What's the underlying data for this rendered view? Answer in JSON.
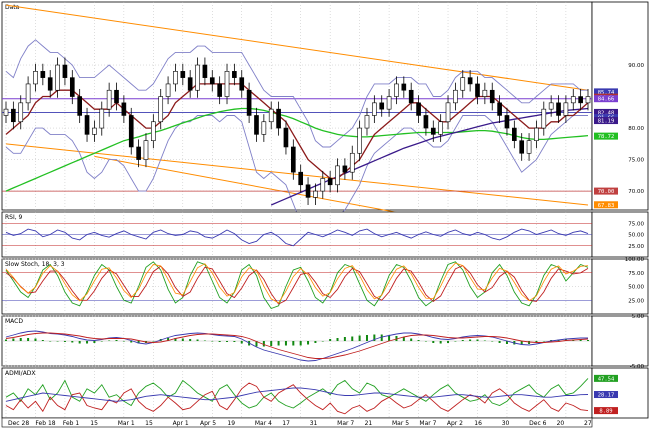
{
  "chart_data": {
    "type": "line",
    "x_labels": [
      "Dec 28",
      "Feb 18",
      "Feb 1",
      "15",
      "Mar 1",
      "15",
      "Apr 1",
      "Apr 5",
      "19",
      "Mar 4",
      "17",
      "31",
      "Mar 7",
      "21",
      "Mar 5",
      "Mar 7",
      "Apr 2",
      "16",
      "30",
      "Dec 6",
      "20",
      "27"
    ],
    "colors": {
      "background": "#ffffff",
      "grid": "#bdbdbd",
      "candle": "#000000",
      "bollinger": "#8080c8",
      "ma_short": "#8b1a1a",
      "ma_long": "#22c022",
      "ma_200": "#3a1a8a",
      "channel": "#ff8c00",
      "purple_line": "#7a3fd0",
      "red_line": "#c04040"
    },
    "price_pane": {
      "title": "Data",
      "y_range": [
        67,
        100
      ],
      "y_ticks": [
        90.0,
        80.0,
        75.0,
        70.0
      ],
      "right_tags": [
        {
          "value": 85.74,
          "label": "85.74",
          "color": "#3a3ab0"
        },
        {
          "value": 84.9,
          "label": "84.9",
          "color": "#b03030"
        },
        {
          "value": 84.66,
          "label": "84.66",
          "color": "#7a3fd0"
        },
        {
          "value": 82.48,
          "label": "82.48",
          "color": "#3a1a8a"
        },
        {
          "value": 81.66,
          "label": "81.66",
          "color": "#3a3ab0"
        },
        {
          "value": 81.19,
          "label": "81.19",
          "color": "#3a1a8a"
        },
        {
          "value": 78.72,
          "label": "78.72",
          "color": "#22c022"
        },
        {
          "value": 70.0,
          "label": "70.00",
          "color": "#c04040"
        },
        {
          "value": 67.83,
          "label": "67.83",
          "color": "#ff8c00"
        }
      ],
      "candles_close": [
        83,
        81,
        84,
        87,
        89,
        88,
        86,
        90,
        88,
        85,
        82,
        79,
        80,
        83,
        86,
        84,
        82,
        77,
        75,
        78,
        81,
        85,
        87,
        89,
        88,
        86,
        90,
        88,
        87,
        85,
        89,
        88,
        86,
        82,
        79,
        81,
        83,
        80,
        77,
        73,
        71,
        69,
        70,
        72,
        71,
        74,
        73,
        76,
        80,
        82,
        84,
        83,
        85,
        87,
        86,
        84,
        82,
        80,
        79,
        81,
        84,
        86,
        88,
        87,
        85,
        86,
        84,
        82,
        80,
        78,
        76,
        78,
        80,
        83,
        84,
        82,
        84,
        85,
        84,
        85
      ],
      "bollinger_upper": [
        89,
        88,
        91,
        93,
        94,
        93,
        92,
        92,
        91,
        90,
        88,
        88,
        88,
        89,
        90,
        89,
        88,
        87,
        86,
        86,
        87,
        89,
        91,
        92,
        92,
        92,
        93,
        93,
        92,
        92,
        92,
        92,
        92,
        90,
        88,
        86,
        85,
        85,
        85,
        85,
        83,
        81,
        78,
        77,
        77,
        78,
        79,
        80,
        82,
        85,
        87,
        87,
        87,
        88,
        88,
        88,
        87,
        87,
        85,
        85,
        86,
        88,
        89,
        89,
        89,
        88,
        88,
        87,
        86,
        85,
        84,
        84,
        85,
        86,
        87,
        87,
        87,
        87,
        86,
        86
      ],
      "bollinger_lower": [
        77,
        76,
        76,
        78,
        80,
        80,
        79,
        79,
        79,
        78,
        76,
        73,
        72,
        73,
        75,
        75,
        74,
        72,
        70,
        70,
        72,
        75,
        78,
        80,
        81,
        81,
        82,
        82,
        82,
        81,
        82,
        82,
        81,
        77,
        73,
        72,
        73,
        72,
        71,
        68,
        65,
        63,
        63,
        65,
        65,
        66,
        67,
        69,
        71,
        74,
        76,
        77,
        78,
        79,
        80,
        80,
        79,
        78,
        77,
        77,
        78,
        80,
        82,
        82,
        82,
        82,
        81,
        79,
        77,
        75,
        73,
        74,
        75,
        77,
        79,
        80,
        81,
        82,
        82,
        82
      ],
      "ma_short": [
        79,
        80,
        81,
        82,
        84,
        85,
        85,
        86,
        86,
        86,
        85,
        84,
        83,
        83,
        83,
        84,
        83,
        82,
        81,
        80,
        80,
        81,
        82,
        84,
        85,
        86,
        87,
        87,
        87,
        87,
        87,
        87,
        87,
        86,
        85,
        84,
        83,
        82,
        81,
        79,
        77,
        75,
        74,
        73,
        72,
        72,
        73,
        74,
        75,
        77,
        79,
        80,
        81,
        82,
        83,
        84,
        84,
        83,
        82,
        81,
        81,
        82,
        83,
        84,
        85,
        85,
        85,
        84,
        83,
        82,
        81,
        80,
        80,
        80,
        81,
        81,
        82,
        82,
        83,
        84
      ],
      "ma_long": [
        70,
        70.5,
        71,
        71.5,
        72,
        72.5,
        73,
        73.5,
        74,
        74.5,
        75,
        75.5,
        76,
        76.5,
        77,
        77.5,
        78,
        78.3,
        78.6,
        79,
        79.3,
        79.6,
        80,
        80.4,
        80.8,
        81.2,
        81.6,
        82,
        82.3,
        82.6,
        82.8,
        83,
        83.1,
        83.1,
        83,
        82.8,
        82.5,
        82.2,
        81.9,
        81.5,
        81,
        80.5,
        80,
        79.6,
        79.3,
        79,
        78.8,
        78.7,
        78.6,
        78.6,
        78.7,
        78.8,
        78.9,
        79,
        79.1,
        79.2,
        79.3,
        79.3,
        79.3,
        79.3,
        79.3,
        79.3,
        79.4,
        79.5,
        79.6,
        79.6,
        79.5,
        79.3,
        79.1,
        78.8,
        78.5,
        78.3,
        78.2,
        78.2,
        78.3,
        78.4,
        78.5,
        78.6,
        78.7,
        78.8
      ],
      "ma_200": [
        null,
        null,
        null,
        null,
        null,
        null,
        null,
        null,
        null,
        null,
        null,
        null,
        null,
        null,
        null,
        null,
        null,
        null,
        null,
        null,
        null,
        null,
        null,
        null,
        null,
        null,
        null,
        null,
        null,
        null,
        null,
        null,
        null,
        null,
        null,
        null,
        67.8,
        68.3,
        68.8,
        69.3,
        69.8,
        70.3,
        70.8,
        71.3,
        71.8,
        72.3,
        72.8,
        73.3,
        73.8,
        74.3,
        74.8,
        75.3,
        75.8,
        76.3,
        76.8,
        77.2,
        77.6,
        78,
        78.4,
        78.7,
        79,
        79.3,
        79.6,
        79.9,
        80.2,
        80.5,
        80.8,
        81,
        81.2,
        81.4,
        81.6,
        81.8,
        82,
        82.2,
        82.4,
        82.6,
        82.8,
        82.9,
        83,
        83.1
      ]
    },
    "rsi_pane": {
      "title": "RSI, 9",
      "y_range": [
        0,
        100
      ],
      "y_ticks": [
        75.0,
        50.0,
        25.0
      ],
      "values": [
        55,
        48,
        52,
        62,
        58,
        45,
        50,
        60,
        55,
        42,
        38,
        50,
        55,
        48,
        44,
        52,
        58,
        50,
        45,
        40,
        55,
        60,
        52,
        48,
        50,
        58,
        55,
        45,
        42,
        50,
        60,
        52,
        38,
        30,
        35,
        50,
        55,
        45,
        30,
        25,
        40,
        55,
        50,
        45,
        52,
        60,
        55,
        48,
        58,
        62,
        52,
        45,
        50,
        55,
        48,
        42,
        50,
        56,
        50,
        46,
        55,
        60,
        52,
        48,
        55,
        50,
        42,
        38,
        45,
        55,
        62,
        58,
        50,
        55,
        60,
        52,
        48,
        55,
        58,
        52
      ]
    },
    "stoch_pane": {
      "title": "Slow Stoch, 18, 3, 3",
      "y_range": [
        0,
        100
      ],
      "y_ticks": [
        100.0,
        75.0,
        50.0,
        25.0
      ],
      "k": [
        80,
        60,
        40,
        30,
        50,
        80,
        90,
        70,
        40,
        20,
        15,
        40,
        70,
        90,
        80,
        50,
        25,
        20,
        50,
        85,
        95,
        80,
        45,
        20,
        30,
        70,
        95,
        90,
        60,
        30,
        20,
        40,
        80,
        90,
        70,
        30,
        10,
        15,
        50,
        80,
        85,
        60,
        30,
        20,
        40,
        75,
        90,
        85,
        55,
        25,
        15,
        35,
        70,
        90,
        85,
        60,
        30,
        15,
        25,
        60,
        90,
        95,
        80,
        50,
        30,
        40,
        75,
        90,
        70,
        40,
        20,
        15,
        35,
        70,
        90,
        85,
        60,
        75,
        90,
        85
      ],
      "d": [
        75,
        65,
        50,
        38,
        40,
        60,
        78,
        78,
        62,
        42,
        25,
        25,
        42,
        65,
        80,
        73,
        52,
        32,
        32,
        52,
        77,
        87,
        73,
        48,
        32,
        40,
        65,
        85,
        82,
        60,
        37,
        30,
        47,
        70,
        80,
        63,
        37,
        18,
        25,
        48,
        72,
        75,
        58,
        37,
        30,
        45,
        68,
        83,
        77,
        55,
        32,
        25,
        40,
        65,
        82,
        78,
        58,
        35,
        23,
        33,
        58,
        82,
        88,
        75,
        53,
        40,
        48,
        68,
        78,
        67,
        43,
        25,
        23,
        40,
        65,
        82,
        78,
        73,
        75,
        83
      ]
    },
    "macd_pane": {
      "title": "MACD",
      "y_range": [
        -5,
        5
      ],
      "y_ticks": [
        5.0,
        -5.0
      ],
      "macd": [
        0.8,
        1.2,
        1.6,
        1.9,
        2.0,
        1.8,
        1.5,
        1.4,
        1.2,
        0.9,
        0.5,
        0.2,
        0.1,
        0.3,
        0.6,
        0.7,
        0.5,
        0.1,
        -0.4,
        -0.6,
        -0.3,
        0.2,
        0.7,
        1.1,
        1.3,
        1.5,
        1.6,
        1.5,
        1.3,
        1.1,
        1.0,
        0.9,
        0.4,
        -0.4,
        -1.2,
        -1.8,
        -2.2,
        -2.6,
        -3.0,
        -3.4,
        -3.8,
        -4.0,
        -3.9,
        -3.5,
        -3.0,
        -2.5,
        -2.0,
        -1.5,
        -0.9,
        -0.3,
        0.3,
        0.8,
        1.1,
        1.4,
        1.6,
        1.6,
        1.4,
        1.1,
        0.7,
        0.4,
        0.3,
        0.5,
        0.8,
        1.0,
        1.1,
        1.0,
        0.8,
        0.4,
        0.0,
        -0.4,
        -0.7,
        -0.8,
        -0.6,
        -0.3,
        0.0,
        0.2,
        0.4,
        0.5,
        0.6,
        0.6
      ],
      "signal": [
        0.5,
        0.7,
        1.0,
        1.3,
        1.5,
        1.6,
        1.6,
        1.5,
        1.4,
        1.2,
        1.0,
        0.7,
        0.5,
        0.4,
        0.5,
        0.5,
        0.5,
        0.4,
        0.1,
        -0.2,
        -0.3,
        -0.2,
        0.1,
        0.5,
        0.8,
        1.1,
        1.3,
        1.4,
        1.4,
        1.3,
        1.2,
        1.1,
        0.9,
        0.5,
        -0.1,
        -0.7,
        -1.2,
        -1.7,
        -2.1,
        -2.5,
        -2.9,
        -3.3,
        -3.5,
        -3.5,
        -3.4,
        -3.1,
        -2.8,
        -2.4,
        -2.0,
        -1.5,
        -1.0,
        -0.5,
        0.0,
        0.4,
        0.8,
        1.1,
        1.2,
        1.2,
        1.1,
        0.9,
        0.7,
        0.6,
        0.6,
        0.7,
        0.8,
        0.9,
        0.9,
        0.8,
        0.6,
        0.3,
        0.0,
        -0.2,
        -0.3,
        -0.3,
        -0.2,
        -0.1,
        0.1,
        0.2,
        0.3,
        0.4
      ],
      "histogram": [
        0.3,
        0.5,
        0.6,
        0.6,
        0.5,
        0.2,
        -0.1,
        -0.1,
        -0.2,
        -0.3,
        -0.5,
        -0.5,
        -0.4,
        -0.1,
        0.1,
        0.2,
        0.0,
        -0.3,
        -0.5,
        -0.4,
        0.0,
        0.4,
        0.6,
        0.6,
        0.5,
        0.4,
        0.3,
        0.1,
        -0.1,
        -0.2,
        -0.2,
        -0.2,
        -0.5,
        -0.9,
        -1.1,
        -1.1,
        -1.0,
        -0.9,
        -0.9,
        -0.9,
        -0.9,
        -0.7,
        -0.4,
        0.0,
        0.4,
        0.6,
        0.8,
        0.9,
        1.1,
        1.2,
        1.3,
        1.3,
        1.1,
        1.0,
        0.8,
        0.5,
        0.2,
        -0.1,
        -0.4,
        -0.5,
        -0.4,
        -0.1,
        0.2,
        0.3,
        0.3,
        0.1,
        -0.1,
        -0.4,
        -0.6,
        -0.7,
        -0.7,
        -0.6,
        -0.3,
        0.0,
        0.2,
        0.3,
        0.3,
        0.3,
        0.3,
        0.2
      ]
    },
    "adx_pane": {
      "title": "ADMI/ADX",
      "y_range": [
        0,
        60
      ],
      "y_ticks": [],
      "right_tags": [
        {
          "value": 47.54,
          "label": "47.54",
          "color": "#22a022"
        },
        {
          "value": 28.17,
          "label": "28.17",
          "color": "#3a3ab0"
        },
        {
          "value": 8.89,
          "label": "8.89",
          "color": "#c02020"
        }
      ],
      "plus_di": [
        25,
        30,
        20,
        35,
        28,
        40,
        22,
        30,
        45,
        25,
        20,
        35,
        30,
        40,
        25,
        28,
        20,
        15,
        30,
        38,
        42,
        35,
        25,
        30,
        45,
        38,
        30,
        25,
        20,
        35,
        40,
        28,
        18,
        12,
        15,
        25,
        30,
        20,
        15,
        12,
        18,
        25,
        30,
        35,
        28,
        40,
        45,
        35,
        30,
        42,
        38,
        28,
        25,
        30,
        35,
        30,
        25,
        20,
        28,
        35,
        40,
        30,
        25,
        20,
        22,
        28,
        18,
        15,
        20,
        30,
        35,
        40,
        30,
        25,
        35,
        40,
        28,
        30,
        38,
        47.54
      ],
      "minus_di": [
        15,
        10,
        22,
        12,
        20,
        8,
        25,
        15,
        10,
        28,
        30,
        15,
        12,
        10,
        22,
        18,
        30,
        35,
        20,
        12,
        8,
        15,
        25,
        18,
        10,
        12,
        20,
        28,
        32,
        15,
        10,
        22,
        35,
        42,
        38,
        25,
        20,
        30,
        35,
        40,
        30,
        22,
        15,
        10,
        18,
        8,
        5,
        12,
        15,
        8,
        12,
        20,
        25,
        18,
        12,
        15,
        22,
        28,
        20,
        12,
        8,
        15,
        22,
        28,
        25,
        18,
        30,
        35,
        28,
        18,
        12,
        8,
        15,
        22,
        12,
        8,
        18,
        15,
        10,
        8.89
      ],
      "adx": [
        20,
        22,
        24,
        26,
        28,
        30,
        29,
        28,
        27,
        26,
        25,
        24,
        23,
        22,
        21,
        20,
        21,
        22,
        24,
        26,
        27,
        28,
        27,
        26,
        25,
        24,
        23,
        22,
        22,
        23,
        24,
        25,
        27,
        29,
        31,
        32,
        33,
        34,
        35,
        36,
        36,
        35,
        34,
        32,
        30,
        28,
        27,
        27,
        28,
        29,
        30,
        30,
        29,
        28,
        27,
        26,
        25,
        25,
        25,
        26,
        27,
        28,
        28,
        27,
        26,
        25,
        25,
        26,
        27,
        28,
        28,
        27,
        26,
        25,
        25,
        26,
        27,
        27,
        28,
        28.17
      ]
    }
  }
}
